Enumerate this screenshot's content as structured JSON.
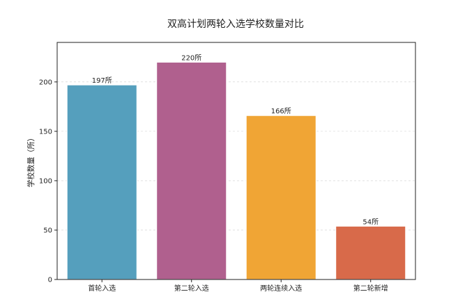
{
  "chart_data": {
    "type": "bar",
    "title": "双高计划两轮入选学校数量对比",
    "xlabel": "",
    "ylabel": "学校数量（所）",
    "categories": [
      "首轮入选",
      "第二轮入选",
      "两轮连续入选",
      "第二轮新增"
    ],
    "values": [
      197,
      220,
      166,
      54
    ],
    "data_labels": [
      "197所",
      "220所",
      "166所",
      "54所"
    ],
    "colors": [
      "#559fbd",
      "#b0608e",
      "#f0a535",
      "#d86a4a"
    ],
    "ylim": [
      0,
      240
    ],
    "yticks": [
      0,
      50,
      100,
      150,
      200
    ],
    "grid": true,
    "legend": "none"
  }
}
